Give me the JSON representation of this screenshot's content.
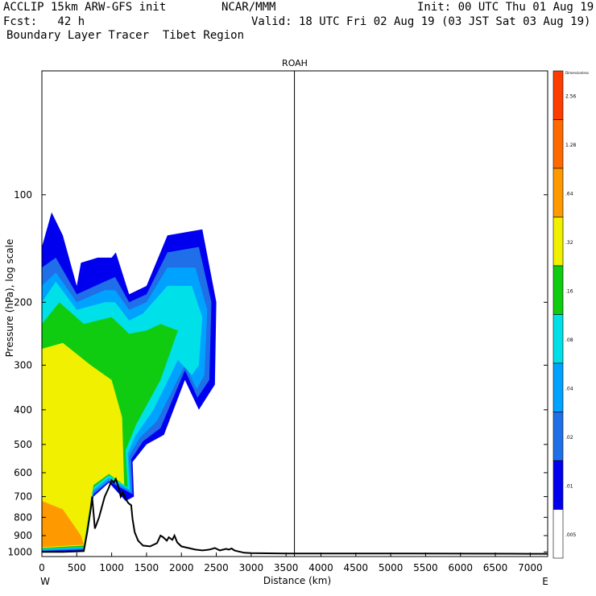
{
  "header": {
    "model": "ACCLIP 15km ARW-GFS init",
    "org": "NCAR/MMM",
    "init": "Init: 00 UTC Thu 01 Aug 19",
    "fcst": "Fcst:   42 h",
    "valid": "Valid: 18 UTC Fri 02 Aug 19 (03 JST Sat 03 Aug 19)",
    "product": "Boundary Layer Tracer  Tibet Region"
  },
  "chart_data": {
    "type": "heatmap",
    "title": "ROAH",
    "xlabel": "Distance (km)",
    "ylabel": "Pressure (hPa), log scale",
    "xlim": [
      0,
      7250
    ],
    "ylim": [
      1030,
      45
    ],
    "y_scale": "log",
    "x_ticks": [
      0,
      500,
      1000,
      1500,
      2000,
      2500,
      3000,
      3500,
      4000,
      4500,
      5000,
      5500,
      6000,
      6500,
      7000
    ],
    "y_ticks": [
      100,
      200,
      300,
      400,
      500,
      600,
      700,
      800,
      900,
      1000
    ],
    "left_end_label": "W",
    "right_end_label": "E",
    "vertical_line_x": 3620,
    "colorbar": {
      "title": "Dimensionless",
      "labels": [
        ".005",
        ".01",
        ".02",
        ".04",
        ".08",
        ".16",
        ".32",
        ".64",
        "1.28",
        "2.56"
      ],
      "colors": [
        "#ffffff",
        "#0000ee",
        "#1f6fe8",
        "#00a2ff",
        "#00e0e8",
        "#10cc10",
        "#f0f000",
        "#ff9900",
        "#ff6a00",
        "#ff3c00"
      ]
    },
    "terrain": {
      "x": [
        0,
        300,
        600,
        650,
        700,
        720,
        760,
        820,
        900,
        960,
        1000,
        1030,
        1060,
        1100,
        1130,
        1160,
        1200,
        1240,
        1280,
        1300,
        1330,
        1380,
        1450,
        1550,
        1650,
        1700,
        1740,
        1790,
        1820,
        1870,
        1900,
        1940,
        2000,
        2100,
        2200,
        2300,
        2400,
        2480,
        2550,
        2600,
        2640,
        2680,
        2720,
        2760,
        2800,
        2900,
        3000,
        3500,
        4000,
        5000,
        6000,
        7000,
        7250
      ],
      "p": [
        1000,
        1000,
        995,
        880,
        760,
        700,
        860,
        800,
        700,
        660,
        630,
        640,
        625,
        660,
        700,
        680,
        710,
        730,
        740,
        810,
        880,
        930,
        960,
        965,
        945,
        900,
        910,
        930,
        910,
        925,
        900,
        940,
        965,
        975,
        985,
        990,
        985,
        975,
        990,
        985,
        980,
        985,
        978,
        990,
        995,
        1005,
        1008,
        1010,
        1010,
        1010,
        1011,
        1012,
        1012
      ]
    },
    "tracer_plume": {
      "description_levels": [
        "<.01",
        ".01-.02",
        ".02-.04",
        ".04-.08",
        ".08-.16",
        ".16-.32",
        ".32-.64",
        ">.64"
      ],
      "core_region_x_km": [
        0,
        2500
      ],
      "core_region_p_hPa": [
        110,
        1000
      ]
    }
  }
}
